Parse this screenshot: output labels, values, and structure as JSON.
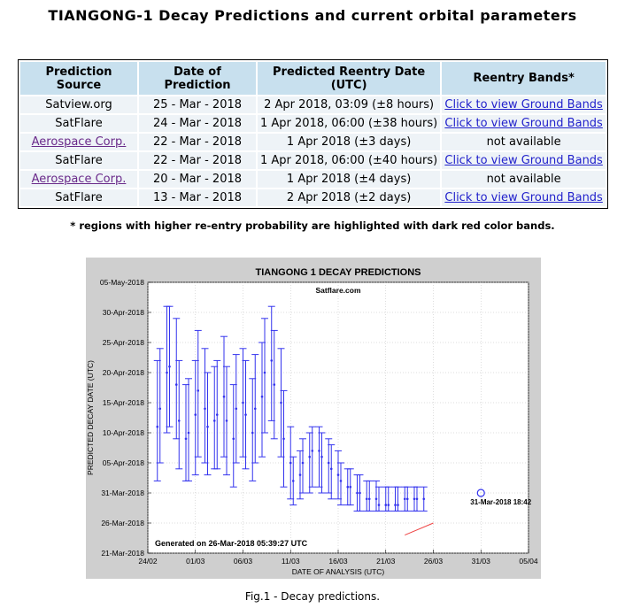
{
  "page": {
    "title": "TIANGONG-1 Decay Predictions and current orbital parameters",
    "footnote": "* regions with higher re-entry probability are highlighted with dark red color bands.",
    "caption": "Fig.1 - Decay predictions."
  },
  "table": {
    "headers": [
      "Prediction Source",
      "Date of Prediction",
      "Predicted Reentry Date (UTC)",
      "Reentry Bands*"
    ],
    "rows": [
      {
        "source": "Satview.org",
        "source_link": false,
        "date": "25 - Mar - 2018",
        "reentry": "2 Apr 2018, 03:09 (±8 hours)",
        "bands": "Click to view Ground Bands",
        "bands_link": true
      },
      {
        "source": "SatFlare",
        "source_link": false,
        "date": "24 - Mar - 2018",
        "reentry": "1 Apr 2018, 06:00 (±38 hours)",
        "bands": "Click to view Ground Bands",
        "bands_link": true
      },
      {
        "source": "Aerospace Corp.",
        "source_link": true,
        "date": "22 - Mar - 2018",
        "reentry": "1 Apr 2018 (±3 days)",
        "bands": "not available",
        "bands_link": false
      },
      {
        "source": "SatFlare",
        "source_link": false,
        "date": "22 - Mar - 2018",
        "reentry": "1 Apr 2018, 06:00 (±40 hours)",
        "bands": "Click to view Ground Bands",
        "bands_link": true
      },
      {
        "source": "Aerospace Corp.",
        "source_link": true,
        "date": "20 - Mar - 2018",
        "reentry": "1 Apr 2018 (±4 days)",
        "bands": "not available",
        "bands_link": false
      },
      {
        "source": "SatFlare",
        "source_link": false,
        "date": "13 - Mar - 2018",
        "reentry": "2 Apr 2018 (±2 days)",
        "bands": "Click to view Ground Bands",
        "bands_link": true
      }
    ]
  },
  "chart_data": {
    "type": "scatter",
    "title": "TIANGONG 1 DECAY PREDICTIONS",
    "subtitle": "Satflare.com",
    "xlabel": "DATE OF ANALYSIS (UTC)",
    "ylabel": "PREDICTED DECAY DATE (UTC)",
    "xlim": [
      "2018-02-24",
      "2018-04-05"
    ],
    "ylim": [
      "2018-03-21",
      "2018-05-05"
    ],
    "x_ticks": [
      "24/02",
      "01/03",
      "06/03",
      "11/03",
      "16/03",
      "21/03",
      "26/03",
      "31/03",
      "05/04"
    ],
    "y_ticks": [
      "21-Mar-2018",
      "26-Mar-2018",
      "31-Mar-2018",
      "05-Apr-2018",
      "10-Apr-2018",
      "15-Apr-2018",
      "20-Apr-2018",
      "25-Apr-2018",
      "30-Apr-2018",
      "05-May-2018"
    ],
    "grid": true,
    "annotation": "Generated on 26-Mar-2018 05:39:27 UTC",
    "final_marker_label": "31-Mar-2018 18:42",
    "colors": {
      "series": "#3333ee",
      "trend": "#ee4444",
      "background": "#cfcfcf",
      "plot": "#ffffff"
    },
    "series": [
      {
        "x": [
          "2018-02-25",
          "2018-02-25",
          "2018-02-26",
          "2018-02-26",
          "2018-02-27",
          "2018-02-27",
          "2018-02-28",
          "2018-02-28",
          "2018-03-01",
          "2018-03-01",
          "2018-03-02",
          "2018-03-02",
          "2018-03-03",
          "2018-03-03",
          "2018-03-04",
          "2018-03-04",
          "2018-03-05",
          "2018-03-05",
          "2018-03-06",
          "2018-03-06",
          "2018-03-07",
          "2018-03-07",
          "2018-03-08",
          "2018-03-08",
          "2018-03-09",
          "2018-03-09",
          "2018-03-10",
          "2018-03-10",
          "2018-03-11",
          "2018-03-11",
          "2018-03-12",
          "2018-03-12",
          "2018-03-13",
          "2018-03-13",
          "2018-03-14",
          "2018-03-14",
          "2018-03-15",
          "2018-03-15",
          "2018-03-16",
          "2018-03-16",
          "2018-03-17",
          "2018-03-17",
          "2018-03-18",
          "2018-03-18",
          "2018-03-19",
          "2018-03-19",
          "2018-03-20",
          "2018-03-20",
          "2018-03-21",
          "2018-03-21",
          "2018-03-22",
          "2018-03-22",
          "2018-03-23",
          "2018-03-23",
          "2018-03-24",
          "2018-03-24",
          "2018-03-25"
        ],
        "center": [
          "2018-04-11",
          "2018-04-14",
          "2018-04-20",
          "2018-04-21",
          "2018-04-18",
          "2018-04-12",
          "2018-04-09",
          "2018-04-10",
          "2018-04-13",
          "2018-04-17",
          "2018-04-14",
          "2018-04-11",
          "2018-04-12",
          "2018-04-13",
          "2018-04-16",
          "2018-04-12",
          "2018-04-09",
          "2018-04-14",
          "2018-04-15",
          "2018-04-13",
          "2018-04-10",
          "2018-04-14",
          "2018-04-16",
          "2018-04-20",
          "2018-04-22",
          "2018-04-18",
          "2018-04-15",
          "2018-04-09",
          "2018-04-05",
          "2018-04-02",
          "2018-04-03",
          "2018-04-05",
          "2018-04-06",
          "2018-04-07",
          "2018-04-07",
          "2018-04-06",
          "2018-04-05",
          "2018-04-04",
          "2018-04-03",
          "2018-04-02",
          "2018-04-01",
          "2018-04-01",
          "2018-03-31",
          "2018-03-31",
          "2018-03-30",
          "2018-03-30",
          "2018-03-30",
          "2018-03-29",
          "2018-03-29",
          "2018-03-29",
          "2018-03-29",
          "2018-03-29",
          "2018-03-30",
          "2018-03-30",
          "2018-03-30",
          "2018-03-30",
          "2018-03-30"
        ],
        "lower": [
          "2018-04-02",
          "2018-04-05",
          "2018-04-10",
          "2018-04-11",
          "2018-04-09",
          "2018-04-04",
          "2018-04-02",
          "2018-04-02",
          "2018-04-03",
          "2018-04-06",
          "2018-04-05",
          "2018-04-03",
          "2018-04-04",
          "2018-04-04",
          "2018-04-06",
          "2018-04-03",
          "2018-04-01",
          "2018-04-05",
          "2018-04-06",
          "2018-04-04",
          "2018-04-02",
          "2018-04-05",
          "2018-04-06",
          "2018-04-10",
          "2018-04-12",
          "2018-04-09",
          "2018-04-06",
          "2018-04-01",
          "2018-03-30",
          "2018-03-29",
          "2018-03-30",
          "2018-03-31",
          "2018-03-31",
          "2018-04-01",
          "2018-04-01",
          "2018-03-31",
          "2018-03-31",
          "2018-03-30",
          "2018-03-30",
          "2018-03-29",
          "2018-03-29",
          "2018-03-29",
          "2018-03-28",
          "2018-03-28",
          "2018-03-28",
          "2018-03-28",
          "2018-03-28",
          "2018-03-28",
          "2018-03-28",
          "2018-03-28",
          "2018-03-28",
          "2018-03-28",
          "2018-03-28",
          "2018-03-28",
          "2018-03-28",
          "2018-03-28",
          "2018-03-28"
        ],
        "upper": [
          "2018-04-22",
          "2018-04-24",
          "2018-05-01",
          "2018-05-01",
          "2018-04-29",
          "2018-04-22",
          "2018-04-18",
          "2018-04-19",
          "2018-04-22",
          "2018-04-27",
          "2018-04-24",
          "2018-04-20",
          "2018-04-21",
          "2018-04-22",
          "2018-04-26",
          "2018-04-21",
          "2018-04-18",
          "2018-04-23",
          "2018-04-24",
          "2018-04-22",
          "2018-04-19",
          "2018-04-23",
          "2018-04-25",
          "2018-04-29",
          "2018-05-01",
          "2018-04-27",
          "2018-04-24",
          "2018-04-17",
          "2018-04-11",
          "2018-04-06",
          "2018-04-07",
          "2018-04-09",
          "2018-04-10",
          "2018-04-11",
          "2018-04-11",
          "2018-04-10",
          "2018-04-09",
          "2018-04-08",
          "2018-04-07",
          "2018-04-05",
          "2018-04-04",
          "2018-04-04",
          "2018-04-03",
          "2018-04-03",
          "2018-04-02",
          "2018-04-02",
          "2018-04-02",
          "2018-04-01",
          "2018-04-01",
          "2018-04-01",
          "2018-04-01",
          "2018-04-01",
          "2018-04-01",
          "2018-04-01",
          "2018-04-01",
          "2018-04-01",
          "2018-04-01"
        ]
      },
      {
        "name": "31-Mar-2018 18:42",
        "x": [
          "2018-03-31"
        ],
        "y": [
          "2018-03-31"
        ]
      }
    ]
  }
}
